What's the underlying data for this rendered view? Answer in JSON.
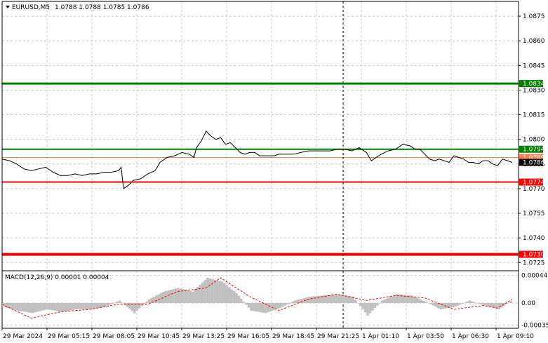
{
  "header": {
    "symbol_label": "EURUSD,M5",
    "ohlc": "1.0788 1.0788 1.0785 1.0786"
  },
  "macd": {
    "label": "MACD(12,26,9) 0.00001 0.00004",
    "ticks": [
      "0.00044",
      "0.00",
      "-0.00035"
    ]
  },
  "price_axis": {
    "ticks": [
      "1.0875",
      "1.0860",
      "1.0845",
      "1.0830",
      "1.0815",
      "1.0800",
      "1.0786",
      "1.0770",
      "1.0755",
      "1.0740",
      "1.0725"
    ]
  },
  "time_axis": {
    "labels": [
      "29 Mar 2024",
      "29 Mar 05:15",
      "29 Mar 08:05",
      "29 Mar 10:45",
      "29 Mar 13:25",
      "29 Mar 16:05",
      "29 Mar 18:45",
      "29 Mar 21:25",
      "1 Apr 01:10",
      "1 Apr 03:50",
      "1 Apr 06:30",
      "1 Apr 09:10"
    ]
  },
  "levels": [
    {
      "name": "resistance-upper",
      "value": 1.0834,
      "label": "1.0834",
      "color": "#008000",
      "width": 3
    },
    {
      "name": "resistance-lower",
      "value": 1.0794,
      "label": "1.0794",
      "color": "#008000",
      "width": 2
    },
    {
      "name": "bid",
      "value": 1.0789,
      "label": "1.0789",
      "color": "#ff7f50",
      "width": 1
    },
    {
      "name": "support-upper",
      "value": 1.0774,
      "label": "1.0774",
      "color": "#ff0000",
      "width": 2
    },
    {
      "name": "support-lower",
      "value": 1.073,
      "label": "1.0730",
      "color": "#ff0000",
      "width": 4
    }
  ],
  "current_price": {
    "value": 1.0786,
    "label": "1.0786"
  },
  "colors": {
    "price_line": "#000000",
    "grid": "#c8c8c8",
    "macd_hist": "#c0c0c0",
    "macd_signal": "#ff0000",
    "crosshair": "#000000"
  },
  "chart_data": {
    "type": "line",
    "symbol": "EURUSD",
    "timeframe": "M5",
    "ylim": [
      1.072,
      1.0884
    ],
    "x": [
      "29 Mar 2024",
      "29 Mar 05:15",
      "29 Mar 08:05",
      "29 Mar 10:45",
      "29 Mar 13:25",
      "29 Mar 16:05",
      "29 Mar 18:45",
      "29 Mar 21:25",
      "1 Apr 01:10",
      "1 Apr 03:50",
      "1 Apr 06:30",
      "1 Apr 09:10"
    ],
    "price_path": [
      [
        0,
        1.0788
      ],
      [
        3,
        1.0787
      ],
      [
        6,
        1.0785
      ],
      [
        9,
        1.0782
      ],
      [
        12,
        1.0781
      ],
      [
        15,
        1.0782
      ],
      [
        18,
        1.0783
      ],
      [
        21,
        1.078
      ],
      [
        24,
        1.0778
      ],
      [
        27,
        1.0778
      ],
      [
        30,
        1.0779
      ],
      [
        33,
        1.0778
      ],
      [
        36,
        1.0779
      ],
      [
        39,
        1.0779
      ],
      [
        42,
        1.078
      ],
      [
        45,
        1.078
      ],
      [
        48,
        1.0781
      ],
      [
        49,
        1.0783
      ],
      [
        50,
        1.077
      ],
      [
        52,
        1.0772
      ],
      [
        54,
        1.0775
      ],
      [
        57,
        1.0776
      ],
      [
        60,
        1.0779
      ],
      [
        63,
        1.0781
      ],
      [
        65,
        1.0786
      ],
      [
        68,
        1.0789
      ],
      [
        71,
        1.079
      ],
      [
        74,
        1.0792
      ],
      [
        77,
        1.0791
      ],
      [
        79,
        1.0789
      ],
      [
        80,
        1.0795
      ],
      [
        82,
        1.0799
      ],
      [
        84,
        1.0805
      ],
      [
        86,
        1.0802
      ],
      [
        88,
        1.08
      ],
      [
        90,
        1.0801
      ],
      [
        92,
        1.0797
      ],
      [
        94,
        1.0798
      ],
      [
        96,
        1.0795
      ],
      [
        98,
        1.0792
      ],
      [
        100,
        1.0791
      ],
      [
        102,
        1.0792
      ],
      [
        104,
        1.0792
      ],
      [
        106,
        1.079
      ],
      [
        108,
        1.079
      ],
      [
        110,
        1.079
      ],
      [
        112,
        1.079
      ],
      [
        114,
        1.0791
      ],
      [
        117,
        1.0791
      ],
      [
        120,
        1.0791
      ],
      [
        123,
        1.0792
      ],
      [
        126,
        1.0793
      ],
      [
        129,
        1.0793
      ],
      [
        132,
        1.0793
      ],
      [
        135,
        1.0793
      ],
      [
        138,
        1.0794
      ],
      [
        141,
        1.0794
      ],
      [
        144,
        1.0793
      ],
      [
        147,
        1.0795
      ],
      [
        150,
        1.0792
      ],
      [
        152,
        1.0787
      ],
      [
        154,
        1.0789
      ],
      [
        156,
        1.0791
      ],
      [
        159,
        1.0793
      ],
      [
        162,
        1.0794
      ],
      [
        165,
        1.0797
      ],
      [
        168,
        1.0796
      ],
      [
        170,
        1.0794
      ],
      [
        172,
        1.0794
      ],
      [
        174,
        1.0791
      ],
      [
        176,
        1.0788
      ],
      [
        178,
        1.0787
      ],
      [
        180,
        1.0788
      ],
      [
        182,
        1.0787
      ],
      [
        184,
        1.0786
      ],
      [
        186,
        1.079
      ],
      [
        188,
        1.0789
      ],
      [
        190,
        1.0788
      ],
      [
        192,
        1.0786
      ],
      [
        194,
        1.0786
      ],
      [
        196,
        1.0785
      ],
      [
        198,
        1.0787
      ],
      [
        200,
        1.0787
      ],
      [
        202,
        1.0785
      ],
      [
        204,
        1.0784
      ],
      [
        206,
        1.0788
      ],
      [
        208,
        1.0787
      ],
      [
        210,
        1.0786
      ]
    ],
    "macd_histogram": [
      [
        0,
        -6e-05
      ],
      [
        6,
        -0.00012
      ],
      [
        12,
        -0.00016
      ],
      [
        18,
        -0.0001
      ],
      [
        24,
        -0.00014
      ],
      [
        30,
        -0.0001
      ],
      [
        36,
        -0.0001
      ],
      [
        42,
        -6e-05
      ],
      [
        48,
        4e-05
      ],
      [
        54,
        -0.00016
      ],
      [
        60,
        6e-05
      ],
      [
        66,
        0.00018
      ],
      [
        72,
        0.00024
      ],
      [
        78,
        0.00018
      ],
      [
        84,
        0.0004
      ],
      [
        90,
        0.00034
      ],
      [
        96,
        0.00016
      ],
      [
        102,
        -0.00012
      ],
      [
        108,
        -0.00016
      ],
      [
        114,
        -8e-05
      ],
      [
        120,
        4e-05
      ],
      [
        126,
        0.0001
      ],
      [
        132,
        0.00012
      ],
      [
        138,
        0.00014
      ],
      [
        144,
        0.0001
      ],
      [
        150,
        -0.0002
      ],
      [
        156,
        4e-05
      ],
      [
        162,
        0.00014
      ],
      [
        168,
        0.00012
      ],
      [
        174,
        2e-05
      ],
      [
        180,
        -0.0001
      ],
      [
        186,
        -6e-05
      ],
      [
        192,
        4e-05
      ],
      [
        198,
        -4e-05
      ],
      [
        204,
        -0.0001
      ],
      [
        210,
        6e-05
      ]
    ],
    "macd_signal": [
      [
        0,
        -2e-05
      ],
      [
        12,
        -0.00024
      ],
      [
        24,
        -0.00014
      ],
      [
        36,
        -0.0001
      ],
      [
        48,
        -2e-05
      ],
      [
        60,
        -2e-05
      ],
      [
        72,
        0.00018
      ],
      [
        84,
        0.00024
      ],
      [
        90,
        0.0004
      ],
      [
        102,
        0.0001
      ],
      [
        114,
        -0.00012
      ],
      [
        126,
        6e-05
      ],
      [
        138,
        0.00014
      ],
      [
        150,
        4e-05
      ],
      [
        162,
        0.00012
      ],
      [
        174,
        8e-05
      ],
      [
        186,
        -0.0001
      ],
      [
        198,
        -4e-05
      ],
      [
        204,
        -8e-05
      ],
      [
        210,
        6e-05
      ]
    ],
    "macd_ylim": [
      -0.0004,
      0.0005
    ],
    "xlabel": "",
    "ylabel": ""
  }
}
